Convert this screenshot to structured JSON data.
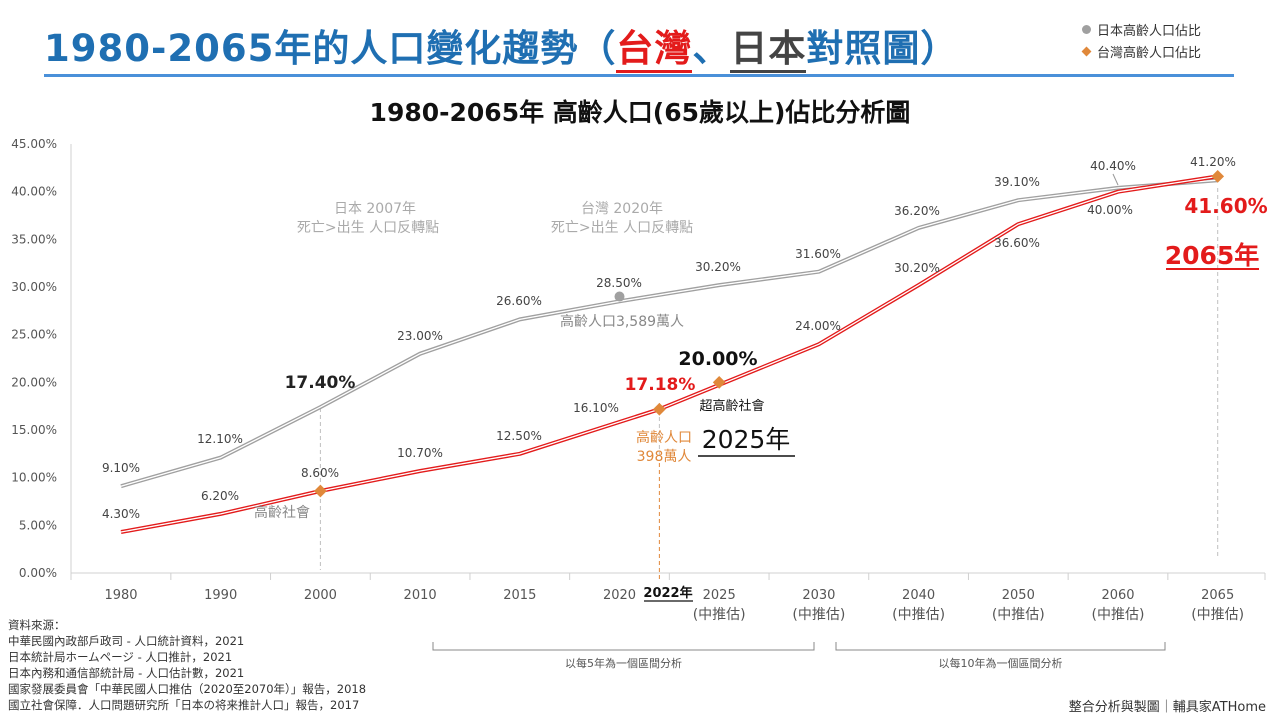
{
  "header": {
    "title_prefix": "1980-2065年的人口變化趨勢（",
    "title_tw": "台灣",
    "title_sep": "、",
    "title_jp": "日本",
    "title_suffix": "對照圖）"
  },
  "legend": {
    "japan": "日本高齡人口佔比",
    "taiwan": "台灣高齡人口佔比"
  },
  "colors": {
    "title": "#1f6fb2",
    "japan_line": "#a0a0a0",
    "taiwan_line": "#e31b1b",
    "taiwan_marker": "#e0883a",
    "japan_marker": "#a0a0a0"
  },
  "chart_data": {
    "type": "line",
    "title": "1980-2065年  高齡人口(65歲以上)佔比分析圖",
    "categories": [
      "1980",
      "1990",
      "2000",
      "2010",
      "2015",
      "2020",
      "2025",
      "2030",
      "2040",
      "2050",
      "2060",
      "2065"
    ],
    "category_sublabels": [
      "",
      "",
      "",
      "",
      "",
      "",
      "(中推估)",
      "(中推估)",
      "(中推估)",
      "(中推估)",
      "(中推估)",
      "(中推估)"
    ],
    "ylim": [
      0,
      45
    ],
    "yticks": [
      "0.00%",
      "5.00%",
      "10.00%",
      "15.00%",
      "20.00%",
      "25.00%",
      "30.00%",
      "35.00%",
      "40.00%",
      "45.00%"
    ],
    "grid": false,
    "legend_position": "top-right",
    "series": [
      {
        "name": "日本高齡人口佔比",
        "x": [
          1980,
          1990,
          2000,
          2010,
          2015,
          2020,
          2025,
          2030,
          2040,
          2050,
          2060,
          2065
        ],
        "values": [
          9.1,
          12.1,
          17.4,
          23.0,
          26.6,
          28.5,
          30.2,
          31.6,
          36.2,
          39.1,
          40.4,
          41.2
        ],
        "labels": [
          "9.10%",
          "12.10%",
          "17.40%",
          "23.00%",
          "26.60%",
          "28.50%",
          "30.20%",
          "31.60%",
          "36.20%",
          "39.10%",
          "40.40%",
          "41.20%"
        ]
      },
      {
        "name": "台灣高齡人口佔比",
        "x": [
          1980,
          1990,
          2000,
          2010,
          2015,
          2022,
          2030,
          2040,
          2050,
          2060,
          2065
        ],
        "values": [
          4.3,
          6.2,
          8.6,
          10.7,
          12.5,
          17.18,
          24.0,
          30.2,
          36.6,
          40.0,
          41.6
        ],
        "labels": [
          "4.30%",
          "6.20%",
          "8.60%",
          "10.70%",
          "12.50%",
          "17.18%",
          "24.00%",
          "30.20%",
          "36.60%",
          "40.00%",
          "41.60%"
        ]
      }
    ],
    "extra_points": [
      {
        "label": "16.10%",
        "x": 2020,
        "y": 16.1
      },
      {
        "label": "20.00%",
        "x": 2025,
        "y": 20.0
      }
    ],
    "annotations": {
      "jp_turn_line1": "日本 2007年",
      "jp_turn_line2": "死亡>出生 人口反轉點",
      "tw_turn_line1": "台灣 2020年",
      "tw_turn_line2": "死亡>出生 人口反轉點",
      "jp_elderly_count": "高齡人口3,589萬人",
      "aged_society": "高齡社會",
      "super_aged_society": "超高齡社會",
      "tw_elderly_label": "高齡人口",
      "tw_elderly_count": "398萬人",
      "year_2025": "2025年",
      "year_2022": "2022年",
      "year_2065": "2065年",
      "interval_5": "以每5年為一個區間分析",
      "interval_10": "以每10年為一個區間分析"
    }
  },
  "sources": {
    "heading": "資料來源：",
    "lines": [
      "中華民國內政部戶政司 - 人口統計資料，2021",
      "日本統計局ホームページ - 人口推計，2021",
      "日本內務和通信部統計局 - 人口估計數，2021",
      "國家發展委員會「中華民國人口推估（2020至2070年）」報告，2018",
      "國立社會保障．人口問題研究所「日本の将来推計人口」報告，2017"
    ]
  },
  "credit": "整合分析與製圖｜輔具家ATHome"
}
